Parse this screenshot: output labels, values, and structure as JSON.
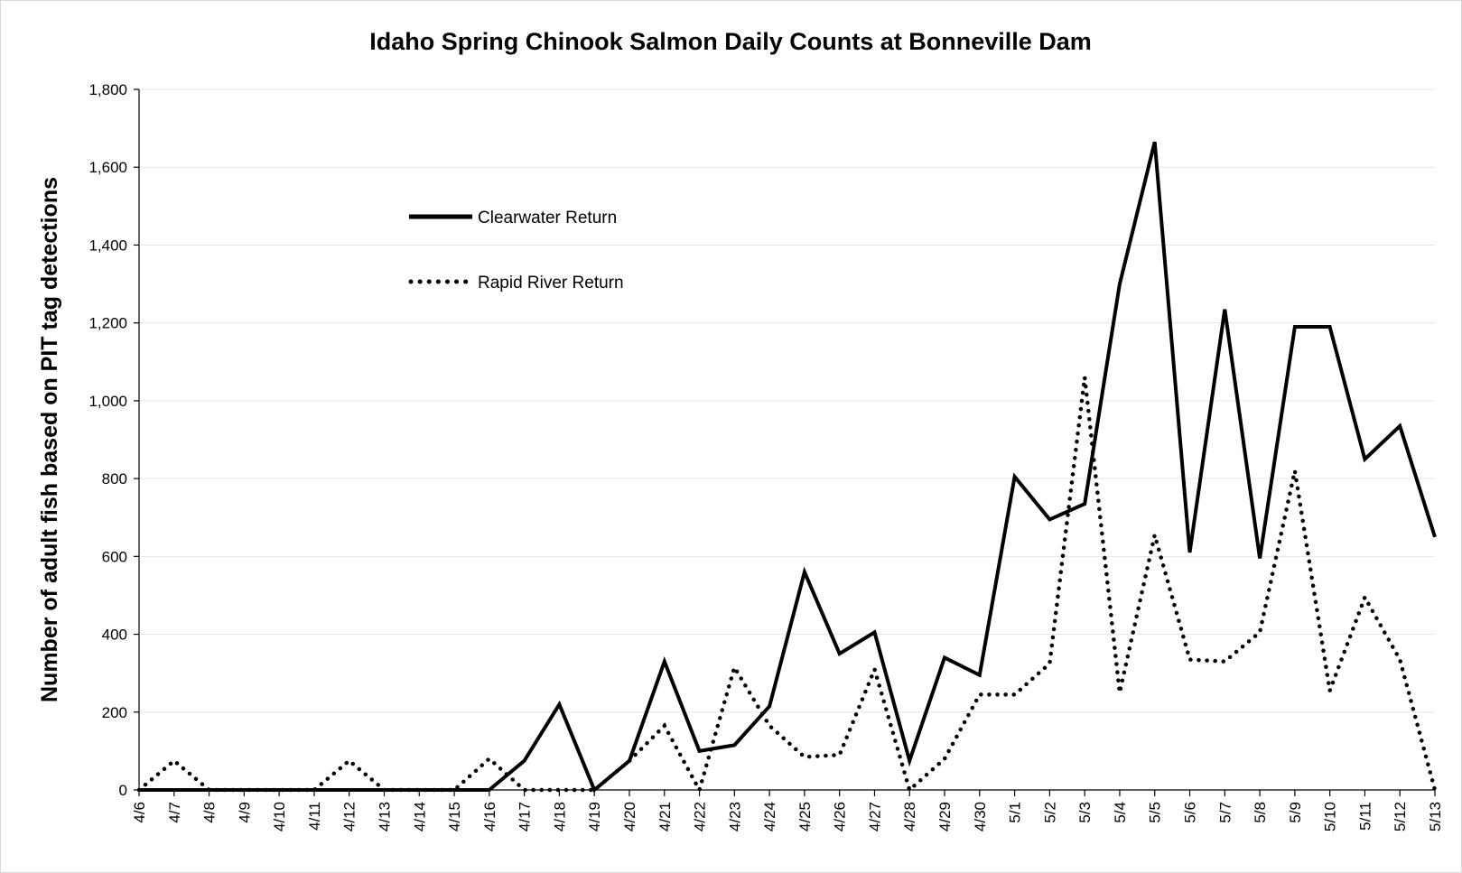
{
  "chart_data": {
    "type": "line",
    "title": "Idaho Spring Chinook Salmon Daily Counts at Bonneville Dam",
    "ylabel": "Number of adult fish based on PIT tag detections",
    "xlabel": "",
    "ylim": [
      0,
      1800
    ],
    "yticks": [
      "0",
      "200",
      "400",
      "600",
      "800",
      "1,000",
      "1,200",
      "1,400",
      "1,600",
      "1,800"
    ],
    "ytick_values": [
      0,
      200,
      400,
      600,
      800,
      1000,
      1200,
      1400,
      1600,
      1800
    ],
    "grid": "horizontal",
    "legend_position": "upper-left inside plot",
    "categories": [
      "4/6",
      "4/7",
      "4/8",
      "4/9",
      "4/10",
      "4/11",
      "4/12",
      "4/13",
      "4/14",
      "4/15",
      "4/16",
      "4/17",
      "4/18",
      "4/19",
      "4/20",
      "4/21",
      "4/22",
      "4/23",
      "4/24",
      "4/25",
      "4/26",
      "4/27",
      "4/28",
      "4/29",
      "4/30",
      "5/1",
      "5/2",
      "5/3",
      "5/4",
      "5/5",
      "5/6",
      "5/7",
      "5/8",
      "5/9",
      "5/10",
      "5/11",
      "5/12",
      "5/13"
    ],
    "series": [
      {
        "name": "Clearwater Return",
        "style": "solid",
        "color": "#000000",
        "values": [
          0,
          0,
          0,
          0,
          0,
          0,
          0,
          0,
          0,
          0,
          0,
          75,
          220,
          0,
          75,
          330,
          100,
          115,
          215,
          560,
          350,
          405,
          75,
          340,
          295,
          805,
          695,
          735,
          1300,
          1665,
          610,
          1235,
          595,
          1190,
          1190,
          850,
          935,
          650
        ]
      },
      {
        "name": "Rapid River Return",
        "style": "dotted",
        "color": "#000000",
        "values": [
          0,
          75,
          0,
          0,
          0,
          0,
          75,
          0,
          0,
          0,
          80,
          0,
          0,
          0,
          75,
          165,
          0,
          315,
          165,
          85,
          90,
          310,
          0,
          80,
          245,
          245,
          325,
          1060,
          250,
          655,
          335,
          330,
          405,
          820,
          255,
          495,
          335,
          0
        ]
      }
    ]
  }
}
